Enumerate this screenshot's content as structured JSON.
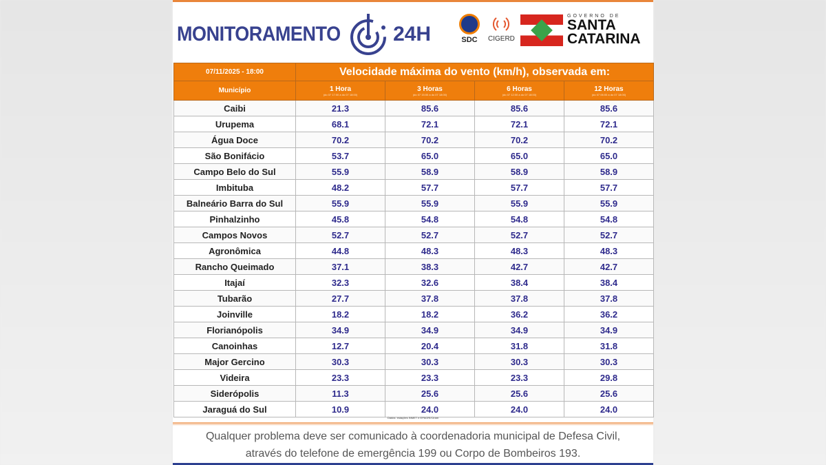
{
  "header": {
    "brand": "MONITORAMENTO",
    "brand_suffix": "24H",
    "sdc": "SDC",
    "cigerd": "CIGERD",
    "gov_small": "GOVERNO DE",
    "gov_line1": "SANTA",
    "gov_line2": "CATARINA"
  },
  "table": {
    "datetime": "07/11/2025 - 18:00",
    "title": "Velocidade máxima do vento (km/h), observada em:",
    "col_municipio": "Município",
    "columns": [
      {
        "label": "1 Hora",
        "range": "(do 07 17:00 a do 07 18:00)"
      },
      {
        "label": "3 Horas",
        "range": "(do 07 15:00 a do 07 18:00)"
      },
      {
        "label": "6 Horas",
        "range": "(do 07 12:00 a do 07 18:00)"
      },
      {
        "label": "12 Horas",
        "range": "(do 07 06:00 a do 07 18:00)"
      }
    ],
    "rows": [
      [
        "Caibi",
        "21.3",
        "85.6",
        "85.6",
        "85.6"
      ],
      [
        "Urupema",
        "68.1",
        "72.1",
        "72.1",
        "72.1"
      ],
      [
        "Água Doce",
        "70.2",
        "70.2",
        "70.2",
        "70.2"
      ],
      [
        "São Bonifácio",
        "53.7",
        "65.0",
        "65.0",
        "65.0"
      ],
      [
        "Campo Belo do Sul",
        "55.9",
        "58.9",
        "58.9",
        "58.9"
      ],
      [
        "Imbituba",
        "48.2",
        "57.7",
        "57.7",
        "57.7"
      ],
      [
        "Balneário Barra do Sul",
        "55.9",
        "55.9",
        "55.9",
        "55.9"
      ],
      [
        "Pinhalzinho",
        "45.8",
        "54.8",
        "54.8",
        "54.8"
      ],
      [
        "Campos Novos",
        "52.7",
        "52.7",
        "52.7",
        "52.7"
      ],
      [
        "Agronômica",
        "44.8",
        "48.3",
        "48.3",
        "48.3"
      ],
      [
        "Rancho Queimado",
        "37.1",
        "38.3",
        "42.7",
        "42.7"
      ],
      [
        "Itajaí",
        "32.3",
        "32.6",
        "38.4",
        "38.4"
      ],
      [
        "Tubarão",
        "27.7",
        "37.8",
        "37.8",
        "37.8"
      ],
      [
        "Joinville",
        "18.2",
        "18.2",
        "36.2",
        "36.2"
      ],
      [
        "Florianópolis",
        "34.9",
        "34.9",
        "34.9",
        "34.9"
      ],
      [
        "Canoinhas",
        "12.7",
        "20.4",
        "31.8",
        "31.8"
      ],
      [
        "Major Gercino",
        "30.3",
        "30.3",
        "30.3",
        "30.3"
      ],
      [
        "Videira",
        "23.3",
        "23.3",
        "23.3",
        "29.8"
      ],
      [
        "Siderópolis",
        "11.3",
        "25.6",
        "25.6",
        "25.6"
      ],
      [
        "Jaraguá do Sul",
        "10.9",
        "24.0",
        "24.0",
        "24.0"
      ]
    ],
    "source": "Dados: estações INMET e EPAGRI/Ciram"
  },
  "footer": {
    "line1": "Qualquer problema deve ser comunicado à coordenadoria municipal de Defesa Civil,",
    "line2": "através do telefone de emergência 199 ou Corpo de Bombeiros 193."
  }
}
